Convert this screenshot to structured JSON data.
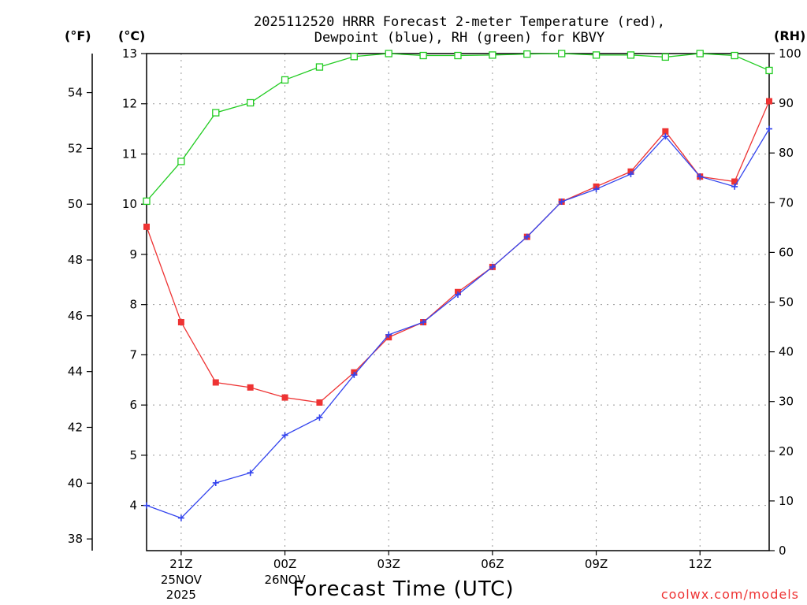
{
  "header": {
    "title_line1": "2025112520 HRRR Forecast 2-meter Temperature (red),",
    "title_line2": "Dewpoint (blue), RH (green) for KBVY"
  },
  "units": {
    "fahrenheit": "(°F)",
    "celsius": "(°C)",
    "rh": "(RH)"
  },
  "footer": {
    "xlabel": "Forecast Time (UTC)",
    "credit": "coolwx.com/models"
  },
  "colors": {
    "temperature": "#ee3333",
    "dewpoint": "#3344ee",
    "rh": "#22cc22",
    "grid": "#999999"
  },
  "chart_data": {
    "type": "line",
    "title": "2025112520 HRRR Forecast 2-meter Temperature (red), Dewpoint (blue), RH (green) for KBVY",
    "xlabel": "Forecast Time (UTC)",
    "x": [
      0,
      1,
      2,
      3,
      4,
      5,
      6,
      7,
      8,
      9,
      10,
      11,
      12,
      13,
      14,
      15,
      16,
      17,
      18
    ],
    "xlim": [
      0,
      18
    ],
    "x_ticks": [
      {
        "x": 1,
        "label": "21Z",
        "sub1": "25NOV",
        "sub2": "2025"
      },
      {
        "x": 4,
        "label": "00Z",
        "sub1": "26NOV",
        "sub2": ""
      },
      {
        "x": 7,
        "label": "03Z",
        "sub1": "",
        "sub2": ""
      },
      {
        "x": 10,
        "label": "06Z",
        "sub1": "",
        "sub2": ""
      },
      {
        "x": 13,
        "label": "09Z",
        "sub1": "",
        "sub2": ""
      },
      {
        "x": 16,
        "label": "12Z",
        "sub1": "",
        "sub2": ""
      }
    ],
    "y_left_celsius": {
      "ylim": [
        3.1,
        13
      ],
      "ticks": [
        4,
        5,
        6,
        7,
        8,
        9,
        10,
        11,
        12,
        13
      ]
    },
    "y_left_fahrenheit": {
      "ticks": [
        38,
        40,
        42,
        44,
        46,
        48,
        50,
        52,
        54
      ]
    },
    "y_right_rh": {
      "ylim": [
        0,
        100
      ],
      "ticks": [
        0,
        10,
        20,
        30,
        40,
        50,
        60,
        70,
        80,
        90,
        100
      ]
    },
    "series": [
      {
        "name": "Temperature",
        "axis": "celsius",
        "marker": "filled-square",
        "values": [
          9.55,
          7.65,
          6.45,
          6.35,
          6.15,
          6.05,
          6.65,
          7.35,
          7.65,
          8.25,
          8.75,
          9.35,
          10.05,
          10.35,
          10.65,
          11.45,
          10.55,
          10.45,
          12.05
        ]
      },
      {
        "name": "Dewpoint",
        "axis": "celsius",
        "marker": "plus",
        "values": [
          4.0,
          3.75,
          4.45,
          4.65,
          5.4,
          5.75,
          6.6,
          7.4,
          7.65,
          8.2,
          8.75,
          9.35,
          10.05,
          10.3,
          10.6,
          11.35,
          10.55,
          10.35,
          11.5
        ]
      },
      {
        "name": "RH",
        "axis": "rh",
        "marker": "open-square",
        "values": [
          70.3,
          78.3,
          88.1,
          90.1,
          94.7,
          97.3,
          99.4,
          100,
          99.6,
          99.6,
          99.7,
          99.9,
          100,
          99.7,
          99.7,
          99.3,
          100,
          99.6,
          96.6
        ]
      }
    ]
  }
}
